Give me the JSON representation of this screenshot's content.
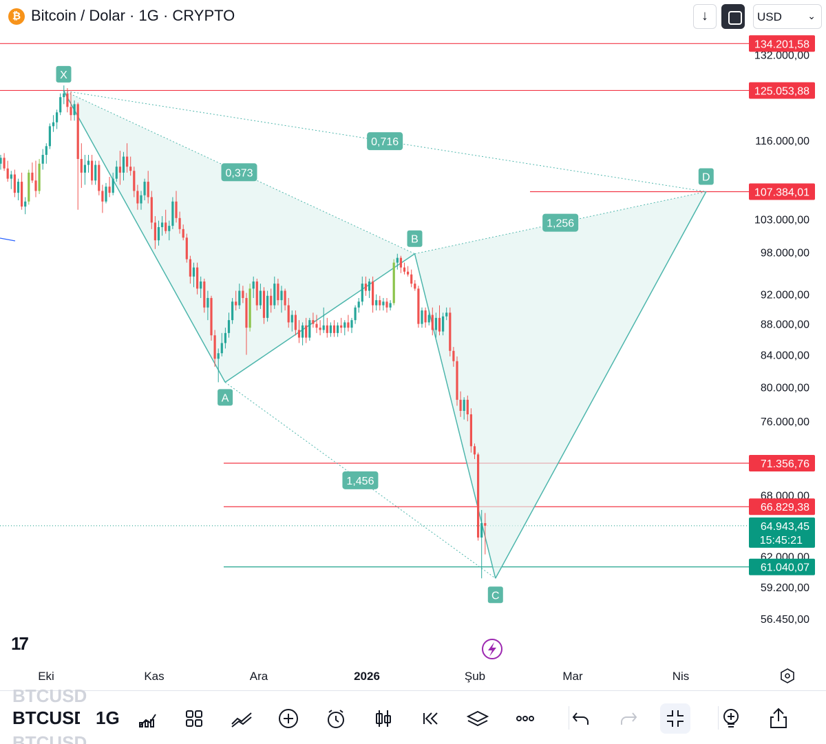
{
  "header": {
    "coin_glyph": "₿",
    "title": "Bitcoin / Dolar · 1G · CRYPTO",
    "currency": "USD",
    "download_icon": "arrow-down-icon",
    "fullscreen_icon": "fullscreen-icon"
  },
  "colors": {
    "up": "#26a69a",
    "up_bright": "#8bc34a",
    "down": "#ef5350",
    "pattern_line": "#4db6ac",
    "pattern_fill": "#e0f2ef",
    "pattern_label": "#5bb8a6",
    "level_red": "#f23645",
    "level_green": "#089981"
  },
  "chart_data": {
    "type": "candlestick",
    "y_axis": {
      "scale": "log",
      "ylim": [
        55500,
        138000
      ],
      "ticks": [
        "132.000,00",
        "116.000,00",
        "103.000,00",
        "98.000,00",
        "92.000,00",
        "88.000,00",
        "84.000,00",
        "80.000,00",
        "76.000,00",
        "68.000,00",
        "62.000,00",
        "59.200,00",
        "56.450,00"
      ],
      "tick_values": [
        132000,
        116000,
        103000,
        98000,
        92000,
        88000,
        84000,
        80000,
        76000,
        68000,
        62000,
        59200,
        56450
      ]
    },
    "x_axis": {
      "labels": [
        "Eki",
        "Kas",
        "Ara",
        "2026",
        "Şub",
        "Mar",
        "Nis"
      ],
      "bold_label": "2026",
      "settings_icon": "settings-hexagon-icon"
    },
    "price_levels": [
      {
        "value": 134201.58,
        "label": "134.201,58",
        "color": "red"
      },
      {
        "value": 125053.88,
        "label": "125.053,88",
        "color": "red"
      },
      {
        "value": 107384.01,
        "label": "107.384,01",
        "color": "red"
      },
      {
        "value": 71356.76,
        "label": "71.356,76",
        "color": "red"
      },
      {
        "value": 66829.38,
        "label": "66.829,38",
        "color": "red"
      },
      {
        "value": 61040.07,
        "label": "61.040,07",
        "color": "green"
      }
    ],
    "current_price": {
      "value": 64943.45,
      "label": "64.943,45",
      "countdown": "15:45:21"
    },
    "pattern": {
      "points": [
        {
          "name": "X",
          "date": "2025-10-06",
          "price": 125000
        },
        {
          "name": "A",
          "date": "2025-11-21",
          "price": 80600
        },
        {
          "name": "B",
          "date": "2026-01-14",
          "price": 97800
        },
        {
          "name": "C",
          "date": "2026-02-06",
          "price": 60000
        },
        {
          "name": "D",
          "date": "2026-04-07",
          "price": 107384
        }
      ],
      "ratios": [
        {
          "label": "0,373",
          "between": "XA-AB"
        },
        {
          "label": "0,716",
          "between": "XB-XD"
        },
        {
          "label": "1,256",
          "between": "BD"
        },
        {
          "label": "1,456",
          "between": "AC"
        }
      ]
    },
    "series": [
      {
        "open": 112000,
        "high": 113500,
        "low": 111000,
        "close": 113000
      },
      {
        "open": 113000,
        "high": 113800,
        "low": 110800,
        "close": 111200
      },
      {
        "open": 111200,
        "high": 112500,
        "low": 109000,
        "close": 109500
      },
      {
        "open": 109500,
        "high": 110800,
        "low": 107800,
        "close": 110200
      },
      {
        "open": 110200,
        "high": 111000,
        "low": 106500,
        "close": 107200
      },
      {
        "open": 107200,
        "high": 109500,
        "low": 106000,
        "close": 109000
      },
      {
        "open": 109000,
        "high": 110500,
        "low": 104500,
        "close": 105000
      },
      {
        "open": 105000,
        "high": 106500,
        "low": 103800,
        "close": 105800
      },
      {
        "open": 105800,
        "high": 111000,
        "low": 105300,
        "close": 110500
      },
      {
        "open": 110500,
        "high": 112200,
        "low": 108800,
        "close": 109200
      },
      {
        "open": 109200,
        "high": 112500,
        "low": 106500,
        "close": 107500
      },
      {
        "open": 107500,
        "high": 112800,
        "low": 107000,
        "close": 112000
      },
      {
        "open": 112000,
        "high": 114500,
        "low": 111000,
        "close": 113500
      },
      {
        "open": 113500,
        "high": 115500,
        "low": 112000,
        "close": 115000
      },
      {
        "open": 115000,
        "high": 119000,
        "low": 114500,
        "close": 118500
      },
      {
        "open": 118500,
        "high": 120500,
        "low": 117500,
        "close": 119200
      },
      {
        "open": 119200,
        "high": 121500,
        "low": 118000,
        "close": 121000
      },
      {
        "open": 121000,
        "high": 124500,
        "low": 120500,
        "close": 123800
      },
      {
        "open": 123800,
        "high": 126000,
        "low": 122500,
        "close": 124500
      },
      {
        "open": 124500,
        "high": 125500,
        "low": 121000,
        "close": 122000
      },
      {
        "open": 122000,
        "high": 124800,
        "low": 119500,
        "close": 120500
      },
      {
        "open": 120500,
        "high": 123200,
        "low": 119500,
        "close": 122500
      },
      {
        "open": 122500,
        "high": 122800,
        "low": 104500,
        "close": 112800
      },
      {
        "open": 112800,
        "high": 115500,
        "low": 108000,
        "close": 110500
      },
      {
        "open": 110500,
        "high": 113500,
        "low": 108500,
        "close": 111800
      },
      {
        "open": 111800,
        "high": 113500,
        "low": 110500,
        "close": 112500
      },
      {
        "open": 112500,
        "high": 113500,
        "low": 108500,
        "close": 109200
      },
      {
        "open": 109200,
        "high": 112500,
        "low": 108500,
        "close": 111800
      },
      {
        "open": 111800,
        "high": 112500,
        "low": 106800,
        "close": 107500
      },
      {
        "open": 107500,
        "high": 108500,
        "low": 104000,
        "close": 105800
      },
      {
        "open": 105800,
        "high": 108800,
        "low": 105500,
        "close": 108200
      },
      {
        "open": 108200,
        "high": 109800,
        "low": 106500,
        "close": 107200
      },
      {
        "open": 107200,
        "high": 110500,
        "low": 106800,
        "close": 109500
      },
      {
        "open": 109500,
        "high": 112500,
        "low": 109000,
        "close": 111500
      },
      {
        "open": 111500,
        "high": 114200,
        "low": 108500,
        "close": 110500
      },
      {
        "open": 110500,
        "high": 114000,
        "low": 109200,
        "close": 113200
      },
      {
        "open": 113200,
        "high": 115500,
        "low": 110500,
        "close": 111500
      },
      {
        "open": 111500,
        "high": 113200,
        "low": 110000,
        "close": 110800
      },
      {
        "open": 110800,
        "high": 111500,
        "low": 106500,
        "close": 107500
      },
      {
        "open": 107500,
        "high": 108500,
        "low": 104500,
        "close": 105500
      },
      {
        "open": 105500,
        "high": 107500,
        "low": 104500,
        "close": 106800
      },
      {
        "open": 106800,
        "high": 109500,
        "low": 106000,
        "close": 109000
      },
      {
        "open": 109000,
        "high": 110800,
        "low": 105500,
        "close": 106500
      },
      {
        "open": 106500,
        "high": 107500,
        "low": 101500,
        "close": 102500
      },
      {
        "open": 102500,
        "high": 103500,
        "low": 98500,
        "close": 99800
      },
      {
        "open": 99800,
        "high": 102800,
        "low": 99000,
        "close": 101800
      },
      {
        "open": 101800,
        "high": 103500,
        "low": 100500,
        "close": 102500
      },
      {
        "open": 102500,
        "high": 104500,
        "low": 100800,
        "close": 101200
      },
      {
        "open": 101200,
        "high": 102800,
        "low": 99800,
        "close": 102000
      },
      {
        "open": 102000,
        "high": 106500,
        "low": 101500,
        "close": 105800
      },
      {
        "open": 105800,
        "high": 107500,
        "low": 102500,
        "close": 103200
      },
      {
        "open": 103200,
        "high": 104200,
        "low": 100800,
        "close": 101500
      },
      {
        "open": 101500,
        "high": 102200,
        "low": 99800,
        "close": 100200
      },
      {
        "open": 100200,
        "high": 100800,
        "low": 96500,
        "close": 97000
      },
      {
        "open": 97000,
        "high": 97500,
        "low": 93500,
        "close": 94500
      },
      {
        "open": 94500,
        "high": 96500,
        "low": 93000,
        "close": 95800
      },
      {
        "open": 95800,
        "high": 96500,
        "low": 92000,
        "close": 92800
      },
      {
        "open": 92800,
        "high": 94500,
        "low": 91500,
        "close": 93800
      },
      {
        "open": 93800,
        "high": 94200,
        "low": 89500,
        "close": 90200
      },
      {
        "open": 90200,
        "high": 92500,
        "low": 88500,
        "close": 91500
      },
      {
        "open": 91500,
        "high": 91800,
        "low": 85800,
        "close": 86500
      },
      {
        "open": 86500,
        "high": 87200,
        "low": 82500,
        "close": 83500
      },
      {
        "open": 83500,
        "high": 84800,
        "low": 80600,
        "close": 84200
      },
      {
        "open": 84200,
        "high": 86800,
        "low": 83800,
        "close": 85500
      },
      {
        "open": 85500,
        "high": 87500,
        "low": 84800,
        "close": 86800
      },
      {
        "open": 86800,
        "high": 89500,
        "low": 86200,
        "close": 88500
      },
      {
        "open": 88500,
        "high": 91500,
        "low": 88000,
        "close": 91000
      },
      {
        "open": 91000,
        "high": 92500,
        "low": 89800,
        "close": 90500
      },
      {
        "open": 90500,
        "high": 93500,
        "low": 90000,
        "close": 92500
      },
      {
        "open": 92500,
        "high": 93200,
        "low": 90800,
        "close": 91500
      },
      {
        "open": 91500,
        "high": 92200,
        "low": 84000,
        "close": 87500
      },
      {
        "open": 87500,
        "high": 93500,
        "low": 87000,
        "close": 92800
      },
      {
        "open": 92800,
        "high": 94500,
        "low": 91500,
        "close": 93800
      },
      {
        "open": 93800,
        "high": 94200,
        "low": 89800,
        "close": 90500
      },
      {
        "open": 90500,
        "high": 93500,
        "low": 90000,
        "close": 92500
      },
      {
        "open": 92500,
        "high": 93000,
        "low": 88000,
        "close": 88800
      },
      {
        "open": 88800,
        "high": 92500,
        "low": 88300,
        "close": 91800
      },
      {
        "open": 91800,
        "high": 92800,
        "low": 89500,
        "close": 90500
      },
      {
        "open": 90500,
        "high": 94500,
        "low": 90000,
        "close": 93500
      },
      {
        "open": 93500,
        "high": 94200,
        "low": 90500,
        "close": 91200
      },
      {
        "open": 91200,
        "high": 93200,
        "low": 89500,
        "close": 92500
      },
      {
        "open": 92500,
        "high": 92800,
        "low": 89800,
        "close": 90500
      },
      {
        "open": 90500,
        "high": 91500,
        "low": 87500,
        "close": 88200
      },
      {
        "open": 88200,
        "high": 89800,
        "low": 87000,
        "close": 89200
      },
      {
        "open": 89200,
        "high": 89800,
        "low": 86500,
        "close": 87200
      },
      {
        "open": 87200,
        "high": 88500,
        "low": 85500,
        "close": 86200
      },
      {
        "open": 86200,
        "high": 88200,
        "low": 85200,
        "close": 87800
      },
      {
        "open": 87800,
        "high": 88800,
        "low": 85500,
        "close": 86200
      },
      {
        "open": 86200,
        "high": 88800,
        "low": 85800,
        "close": 88500
      },
      {
        "open": 88500,
        "high": 89500,
        "low": 87500,
        "close": 88000
      },
      {
        "open": 88000,
        "high": 89200,
        "low": 86800,
        "close": 87500
      },
      {
        "open": 87500,
        "high": 88500,
        "low": 86500,
        "close": 87200
      },
      {
        "open": 87200,
        "high": 90200,
        "low": 86800,
        "close": 87800
      },
      {
        "open": 87800,
        "high": 88800,
        "low": 86200,
        "close": 86800
      },
      {
        "open": 86800,
        "high": 88200,
        "low": 86300,
        "close": 87800
      },
      {
        "open": 87800,
        "high": 88500,
        "low": 86300,
        "close": 86800
      },
      {
        "open": 86800,
        "high": 88200,
        "low": 86300,
        "close": 87800
      },
      {
        "open": 87800,
        "high": 88800,
        "low": 86800,
        "close": 87500
      },
      {
        "open": 87500,
        "high": 88500,
        "low": 86500,
        "close": 88200
      },
      {
        "open": 88200,
        "high": 89200,
        "low": 87000,
        "close": 87500
      },
      {
        "open": 87500,
        "high": 88800,
        "low": 86800,
        "close": 88500
      },
      {
        "open": 88500,
        "high": 90500,
        "low": 88000,
        "close": 90200
      },
      {
        "open": 90200,
        "high": 91500,
        "low": 89500,
        "close": 91000
      },
      {
        "open": 91000,
        "high": 94500,
        "low": 90500,
        "close": 93500
      },
      {
        "open": 93500,
        "high": 94500,
        "low": 91800,
        "close": 92500
      },
      {
        "open": 92500,
        "high": 94200,
        "low": 91500,
        "close": 93800
      },
      {
        "open": 93800,
        "high": 94500,
        "low": 89500,
        "close": 90500
      },
      {
        "open": 90500,
        "high": 92000,
        "low": 89800,
        "close": 91200
      },
      {
        "open": 91200,
        "high": 91800,
        "low": 89800,
        "close": 90500
      },
      {
        "open": 90500,
        "high": 91500,
        "low": 89800,
        "close": 91000
      },
      {
        "open": 91000,
        "high": 91500,
        "low": 89500,
        "close": 90200
      },
      {
        "open": 90200,
        "high": 91200,
        "low": 89800,
        "close": 90800
      },
      {
        "open": 90800,
        "high": 97000,
        "low": 90500,
        "close": 96500
      },
      {
        "open": 96500,
        "high": 97800,
        "low": 95500,
        "close": 97200
      },
      {
        "open": 97200,
        "high": 97500,
        "low": 95000,
        "close": 95800
      },
      {
        "open": 95800,
        "high": 96500,
        "low": 94800,
        "close": 95200
      },
      {
        "open": 95200,
        "high": 96000,
        "low": 94500,
        "close": 94800
      },
      {
        "open": 94800,
        "high": 95500,
        "low": 93000,
        "close": 93500
      },
      {
        "open": 93500,
        "high": 94000,
        "low": 92500,
        "close": 92800
      },
      {
        "open": 92800,
        "high": 93200,
        "low": 87500,
        "close": 88000
      },
      {
        "open": 88000,
        "high": 90200,
        "low": 87500,
        "close": 89800
      },
      {
        "open": 89800,
        "high": 90200,
        "low": 87500,
        "close": 88200
      },
      {
        "open": 88200,
        "high": 89800,
        "low": 87800,
        "close": 89200
      },
      {
        "open": 89200,
        "high": 90200,
        "low": 86500,
        "close": 87200
      },
      {
        "open": 87200,
        "high": 89500,
        "low": 86200,
        "close": 88800
      },
      {
        "open": 88800,
        "high": 90500,
        "low": 86500,
        "close": 87000
      },
      {
        "open": 87000,
        "high": 89500,
        "low": 86500,
        "close": 89000
      },
      {
        "open": 89000,
        "high": 90200,
        "low": 88500,
        "close": 89500
      },
      {
        "open": 89500,
        "high": 90200,
        "low": 83800,
        "close": 84500
      },
      {
        "open": 84500,
        "high": 85000,
        "low": 82500,
        "close": 83200
      },
      {
        "open": 83200,
        "high": 83800,
        "low": 77800,
        "close": 78500
      },
      {
        "open": 78500,
        "high": 79500,
        "low": 76500,
        "close": 77200
      },
      {
        "open": 77200,
        "high": 78800,
        "low": 76200,
        "close": 78500
      },
      {
        "open": 78500,
        "high": 79000,
        "low": 76000,
        "close": 76800
      },
      {
        "open": 76800,
        "high": 77500,
        "low": 72500,
        "close": 73200
      },
      {
        "open": 73200,
        "high": 73500,
        "low": 71800,
        "close": 72300
      },
      {
        "open": 72300,
        "high": 72500,
        "low": 63500,
        "close": 63800
      },
      {
        "open": 63800,
        "high": 66500,
        "low": 60000,
        "close": 65200
      },
      {
        "open": 65200,
        "high": 66200,
        "low": 62200,
        "close": 64943
      }
    ]
  },
  "watermark": {
    "logo_icon": "tradingview-logo-icon",
    "replay_icon": "lightning-icon"
  },
  "bottom_bar": {
    "symbol": "BTCUSD",
    "symbol_ghost_top": "BTCUSD",
    "symbol_ghost_bottom": "BTCUSD",
    "timeframe": "1G",
    "tools": [
      "indicators-icon",
      "layouts-icon",
      "drawing-icon",
      "add-icon",
      "alert-icon",
      "candles-icon",
      "replay-icon",
      "layers-icon",
      "more-icon",
      "undo-icon",
      "redo-icon",
      "fullscreen-exit-icon",
      "lightbulb-icon",
      "share-icon"
    ]
  }
}
